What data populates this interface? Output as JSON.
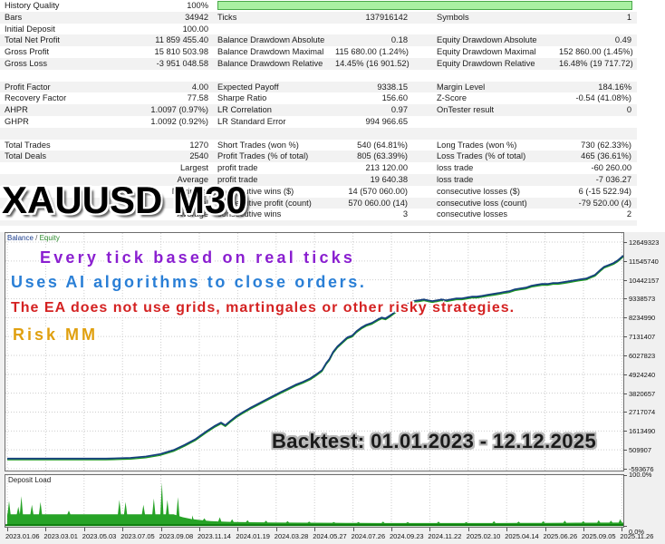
{
  "watermark": "XAUUSD M30",
  "colors": {
    "quality_bar_fill": "#a9f0a2",
    "quality_bar_border": "#4aa84a",
    "balance_line": "#15407d",
    "equity_line": "#1e9c1e",
    "deposit_fill": "#27a327",
    "deposit_baseline": "#0c7a0c",
    "overlay_purple": "#8a1fd0",
    "overlay_blue": "#2a7fd6",
    "overlay_red": "#d42222",
    "overlay_gold": "#e0a010"
  },
  "table": {
    "rows": [
      {
        "cells": [
          "History Quality",
          "100%",
          "",
          "",
          "",
          ""
        ],
        "quality_bar": true
      },
      {
        "cells": [
          "Bars",
          "34942",
          "Ticks",
          "137916142",
          "Symbols",
          "1"
        ]
      },
      {
        "cells": [
          "Initial Deposit",
          "100.00",
          "",
          "",
          "",
          ""
        ]
      },
      {
        "cells": [
          "Total Net Profit",
          "11 859 455.40",
          "Balance Drawdown Absolute",
          "0.18",
          "Equity Drawdown Absolute",
          "0.49"
        ]
      },
      {
        "cells": [
          "Gross Profit",
          "15 810 503.98",
          "Balance Drawdown Maximal",
          "115 680.00 (1.24%)",
          "Equity Drawdown Maximal",
          "152 860.00 (1.45%)"
        ]
      },
      {
        "cells": [
          "Gross Loss",
          "-3 951 048.58",
          "Balance Drawdown Relative",
          "14.45% (16 901.52)",
          "Equity Drawdown Relative",
          "16.48% (19 717.72)"
        ]
      },
      {
        "cells": [
          "",
          "",
          "",
          "",
          "",
          ""
        ],
        "blank": true
      },
      {
        "cells": [
          "Profit Factor",
          "4.00",
          "Expected Payoff",
          "9338.15",
          "Margin Level",
          "184.16%"
        ]
      },
      {
        "cells": [
          "Recovery Factor",
          "77.58",
          "Sharpe Ratio",
          "156.60",
          "Z-Score",
          "-0.54 (41.08%)"
        ]
      },
      {
        "cells": [
          "AHPR",
          "1.0097 (0.97%)",
          "LR Correlation",
          "0.97",
          "OnTester result",
          "0"
        ]
      },
      {
        "cells": [
          "GHPR",
          "1.0092 (0.92%)",
          "LR Standard Error",
          "994 966.65",
          "",
          ""
        ]
      },
      {
        "cells": [
          "",
          "",
          "",
          "",
          "",
          ""
        ],
        "blank": true
      },
      {
        "cells": [
          "Total Trades",
          "1270",
          "Short Trades (won %)",
          "540 (64.81%)",
          "Long Trades (won %)",
          "730 (62.33%)"
        ]
      },
      {
        "cells": [
          "Total Deals",
          "2540",
          "Profit Trades (% of total)",
          "805 (63.39%)",
          "Loss Trades (% of total)",
          "465 (36.61%)"
        ]
      },
      {
        "cells": [
          "",
          "Largest",
          "profit trade",
          "213 120.00",
          "loss trade",
          "-60 260.00"
        ]
      },
      {
        "cells": [
          "",
          "Average",
          "profit trade",
          "19 640.38",
          "loss trade",
          "-7 036.27"
        ]
      },
      {
        "cells": [
          "",
          "Maximum",
          "consecutive wins ($)",
          "14 (570 060.00)",
          "consecutive losses ($)",
          "6 (-15 522.94)"
        ]
      },
      {
        "cells": [
          "",
          "Maximal",
          "consecutive profit (count)",
          "570 060.00 (14)",
          "consecutive loss (count)",
          "-79 520.00 (4)"
        ]
      },
      {
        "cells": [
          "",
          "Average",
          "consecutive wins",
          "3",
          "consecutive losses",
          "2"
        ]
      },
      {
        "cells": [
          "",
          "",
          "",
          "",
          "",
          ""
        ],
        "blank": true,
        "spacer": true
      }
    ]
  },
  "chart": {
    "legend": {
      "balance": "Balance",
      "sep": " / ",
      "equity": "Equity"
    },
    "overlays": [
      {
        "text": "Every tick based on real ticks",
        "style": "purple"
      },
      {
        "text": "Uses AI algorithms to close orders.",
        "style": "blue"
      },
      {
        "text": "The EA does not use grids, martingales or other risky strategies.",
        "style": "red"
      },
      {
        "text": "Risk MM",
        "style": "gold"
      }
    ],
    "backtest_label": "Backtest: 01.01.2023 - 12.12.2025"
  },
  "deposit": {
    "label": "Deposit Load",
    "top_label": "100.0%",
    "bottom_label": "0.0%"
  },
  "chart_data": {
    "type": "line",
    "title": "",
    "legend_position": "top-left",
    "grid": "dotted",
    "y_axis": {
      "ticks": [
        12649323,
        11545740,
        10442157,
        9338573,
        8234990,
        7131407,
        6027823,
        4924240,
        3820657,
        2717074,
        1613490,
        509907,
        -593676
      ]
    },
    "x_axis": {
      "labels": [
        "2023.01.06",
        "2023.03.01",
        "2023.05.03",
        "2023.07.05",
        "2023.09.08",
        "2023.11.14",
        "2024.01.19",
        "2024.03.28",
        "2024.05.27",
        "2024.07.26",
        "2024.09.23",
        "2024.11.22",
        "2025.02.10",
        "2025.04.14",
        "2025.06.26",
        "2025.09.05",
        "2025.11.26"
      ]
    },
    "series": [
      {
        "name": "Balance",
        "points": [
          [
            0.0,
            100
          ],
          [
            0.16,
            100
          ],
          [
            0.2,
            40000
          ],
          [
            0.225,
            120000
          ],
          [
            0.248,
            260000
          ],
          [
            0.27,
            500000
          ],
          [
            0.288,
            800000
          ],
          [
            0.305,
            1120000
          ],
          [
            0.322,
            1560000
          ],
          [
            0.336,
            1890000
          ],
          [
            0.347,
            2100000
          ],
          [
            0.354,
            1950000
          ],
          [
            0.362,
            2200000
          ],
          [
            0.372,
            2480000
          ],
          [
            0.383,
            2720000
          ],
          [
            0.394,
            2950000
          ],
          [
            0.406,
            3180000
          ],
          [
            0.418,
            3400000
          ],
          [
            0.43,
            3630000
          ],
          [
            0.444,
            3890000
          ],
          [
            0.456,
            4100000
          ],
          [
            0.468,
            4310000
          ],
          [
            0.48,
            4480000
          ],
          [
            0.492,
            4690000
          ],
          [
            0.503,
            4950000
          ],
          [
            0.511,
            5170000
          ],
          [
            0.518,
            5590000
          ],
          [
            0.523,
            5810000
          ],
          [
            0.529,
            6230000
          ],
          [
            0.536,
            6550000
          ],
          [
            0.544,
            6810000
          ],
          [
            0.552,
            7080000
          ],
          [
            0.56,
            7190000
          ],
          [
            0.567,
            7450000
          ],
          [
            0.575,
            7660000
          ],
          [
            0.583,
            7820000
          ],
          [
            0.592,
            7930000
          ],
          [
            0.602,
            8140000
          ],
          [
            0.608,
            8240000
          ],
          [
            0.614,
            8190000
          ],
          [
            0.621,
            8350000
          ],
          [
            0.631,
            8620000
          ],
          [
            0.641,
            8830000
          ],
          [
            0.65,
            9040000
          ],
          [
            0.658,
            9200000
          ],
          [
            0.668,
            9250000
          ],
          [
            0.676,
            9300000
          ],
          [
            0.683,
            9250000
          ],
          [
            0.69,
            9200000
          ],
          [
            0.698,
            9250000
          ],
          [
            0.705,
            9300000
          ],
          [
            0.712,
            9250000
          ],
          [
            0.72,
            9300000
          ],
          [
            0.729,
            9360000
          ],
          [
            0.738,
            9360000
          ],
          [
            0.746,
            9410000
          ],
          [
            0.754,
            9460000
          ],
          [
            0.762,
            9460000
          ],
          [
            0.771,
            9510000
          ],
          [
            0.78,
            9570000
          ],
          [
            0.789,
            9620000
          ],
          [
            0.798,
            9670000
          ],
          [
            0.806,
            9730000
          ],
          [
            0.815,
            9780000
          ],
          [
            0.824,
            9890000
          ],
          [
            0.833,
            9940000
          ],
          [
            0.842,
            9990000
          ],
          [
            0.851,
            10100000
          ],
          [
            0.859,
            10150000
          ],
          [
            0.868,
            10200000
          ],
          [
            0.877,
            10200000
          ],
          [
            0.886,
            10260000
          ],
          [
            0.894,
            10260000
          ],
          [
            0.903,
            10310000
          ],
          [
            0.912,
            10360000
          ],
          [
            0.921,
            10420000
          ],
          [
            0.93,
            10470000
          ],
          [
            0.94,
            10520000
          ],
          [
            0.947,
            10630000
          ],
          [
            0.954,
            10730000
          ],
          [
            0.962,
            11000000
          ],
          [
            0.969,
            11210000
          ],
          [
            0.977,
            11320000
          ],
          [
            0.984,
            11420000
          ],
          [
            0.991,
            11580000
          ],
          [
            1.0,
            11859555
          ]
        ]
      },
      {
        "name": "Equity",
        "points": "same_as_balance",
        "note": "overlaps balance line"
      }
    ],
    "deposit_load": {
      "unit": "%",
      "range": [
        0,
        100
      ],
      "baseline": [
        [
          0,
          22
        ],
        [
          0.27,
          22
        ],
        [
          0.285,
          16
        ],
        [
          0.3,
          12
        ],
        [
          0.33,
          8
        ],
        [
          0.37,
          6
        ],
        [
          0.45,
          5
        ],
        [
          0.6,
          4
        ],
        [
          0.8,
          4
        ],
        [
          1,
          5
        ]
      ],
      "spikes": [
        [
          0.003,
          50
        ],
        [
          0.018,
          38
        ],
        [
          0.023,
          60
        ],
        [
          0.04,
          42
        ],
        [
          0.054,
          48
        ],
        [
          0.1,
          30
        ],
        [
          0.182,
          52
        ],
        [
          0.192,
          48
        ],
        [
          0.221,
          42
        ],
        [
          0.238,
          55
        ],
        [
          0.251,
          88
        ],
        [
          0.26,
          52
        ],
        [
          0.277,
          58
        ],
        [
          0.3,
          20
        ],
        [
          0.32,
          14
        ],
        [
          0.345,
          16
        ],
        [
          0.365,
          12
        ],
        [
          0.39,
          10
        ],
        [
          0.42,
          9
        ],
        [
          0.455,
          8
        ],
        [
          0.49,
          7
        ],
        [
          0.53,
          6
        ],
        [
          0.57,
          6
        ],
        [
          0.61,
          7
        ],
        [
          0.65,
          6
        ],
        [
          0.7,
          7
        ],
        [
          0.745,
          6
        ],
        [
          0.79,
          8
        ],
        [
          0.83,
          7
        ],
        [
          0.87,
          8
        ],
        [
          0.905,
          9
        ],
        [
          0.935,
          8
        ],
        [
          0.96,
          10
        ],
        [
          0.98,
          9
        ],
        [
          0.995,
          12
        ]
      ]
    }
  }
}
